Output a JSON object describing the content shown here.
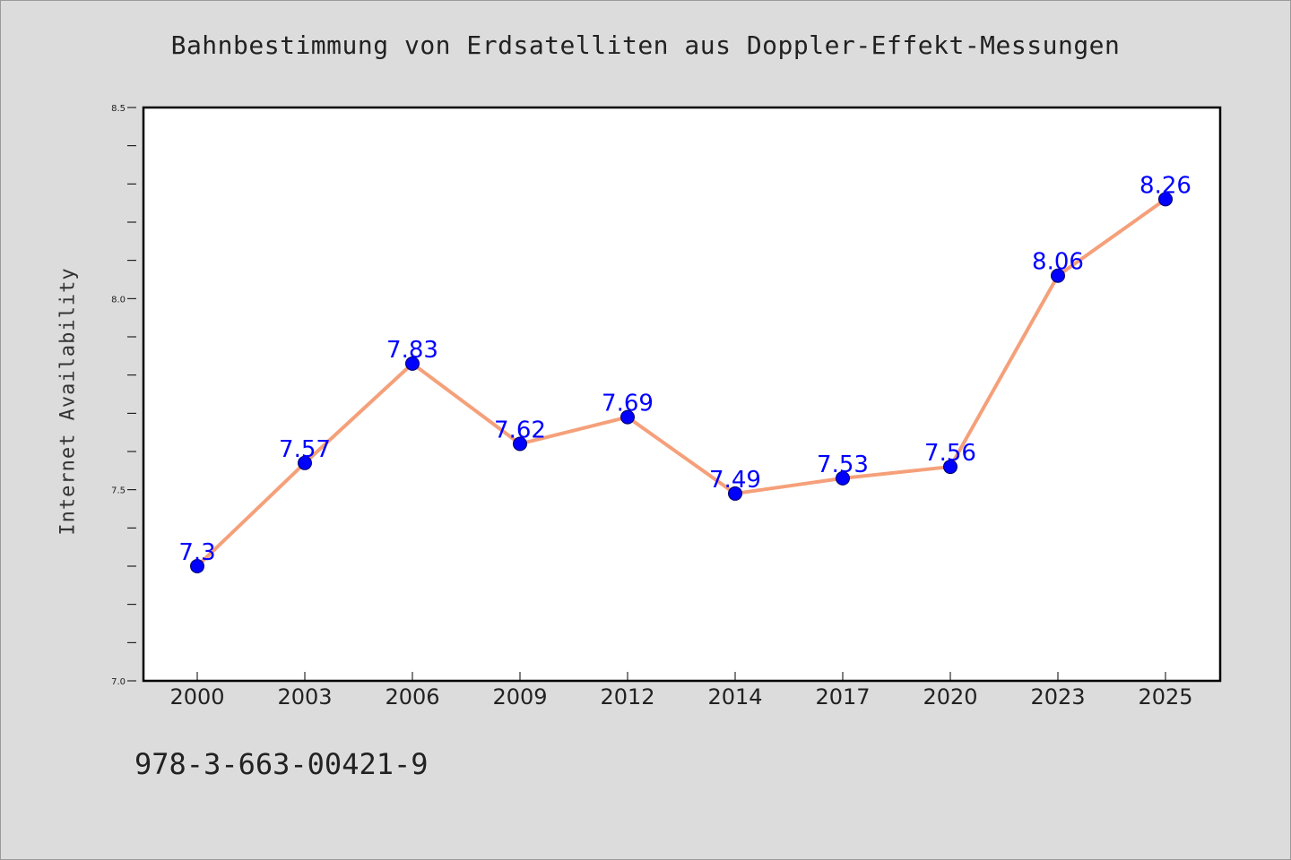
{
  "chart_data": {
    "type": "line",
    "title": "Bahnbestimmung von Erdsatelliten aus Doppler-Effekt-Messungen",
    "xlabel": "",
    "ylabel": "Internet Availability",
    "categories": [
      "2000",
      "2003",
      "2006",
      "2009",
      "2012",
      "2014",
      "2017",
      "2020",
      "2023",
      "2025"
    ],
    "series": [
      {
        "values": [
          7.3,
          7.57,
          7.83,
          7.62,
          7.69,
          7.49,
          7.53,
          7.56,
          8.06,
          8.26
        ],
        "labels": [
          "7.3",
          "7.57",
          "7.83",
          "7.62",
          "7.69",
          "7.49",
          "7.53",
          "7.56",
          "8.06",
          "8.26"
        ]
      }
    ],
    "ylim": [
      7.0,
      8.5
    ],
    "yticks": [
      "7.0",
      "7.5",
      "8.0",
      "8.5"
    ],
    "grid": false,
    "line_color": "#f5a07a",
    "marker_color": "#0000ff",
    "label_color": "#0000ff"
  },
  "footer": {
    "isbn": "978-3-663-00421-9"
  }
}
